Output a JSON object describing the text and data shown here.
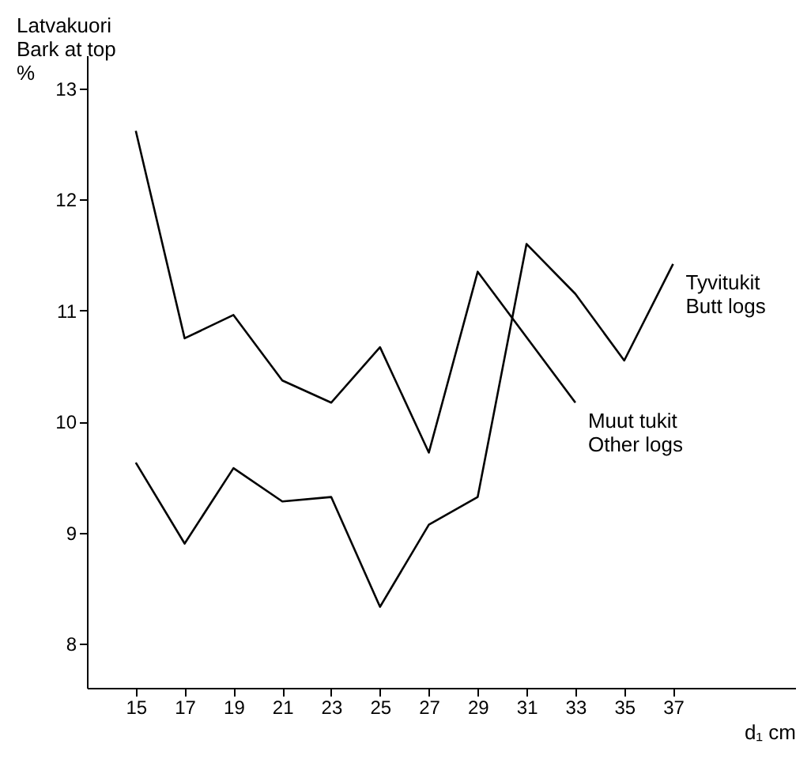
{
  "chart_data": {
    "type": "line",
    "ylabel": "Latvakuori\nBark at top\n%",
    "xlabel": "d₁ cm",
    "x": [
      15,
      17,
      19,
      21,
      23,
      25,
      27,
      29,
      31,
      33,
      35,
      37
    ],
    "series": [
      {
        "name": "Muut tukit\nOther logs",
        "color": "#000000",
        "x": [
          15,
          17,
          19,
          21,
          23,
          25,
          27,
          29,
          33
        ],
        "values": [
          12.62,
          10.75,
          10.96,
          10.37,
          10.17,
          10.67,
          9.72,
          11.35,
          10.17
        ]
      },
      {
        "name": "Tyvitukit\nButt logs",
        "color": "#000000",
        "values": [
          9.63,
          8.9,
          9.58,
          9.28,
          9.32,
          8.33,
          9.07,
          9.32,
          11.6,
          11.15,
          10.55,
          11.42
        ]
      }
    ],
    "xlim": [
      13,
      42
    ],
    "ylim": [
      7.6,
      13.3
    ],
    "xticks": [
      15,
      17,
      19,
      21,
      23,
      25,
      27,
      29,
      31,
      33,
      35,
      37
    ],
    "yticks": [
      8,
      9,
      10,
      11,
      12,
      13
    ],
    "grid": false,
    "legend": false,
    "marker": "none",
    "line_style": "solid"
  }
}
